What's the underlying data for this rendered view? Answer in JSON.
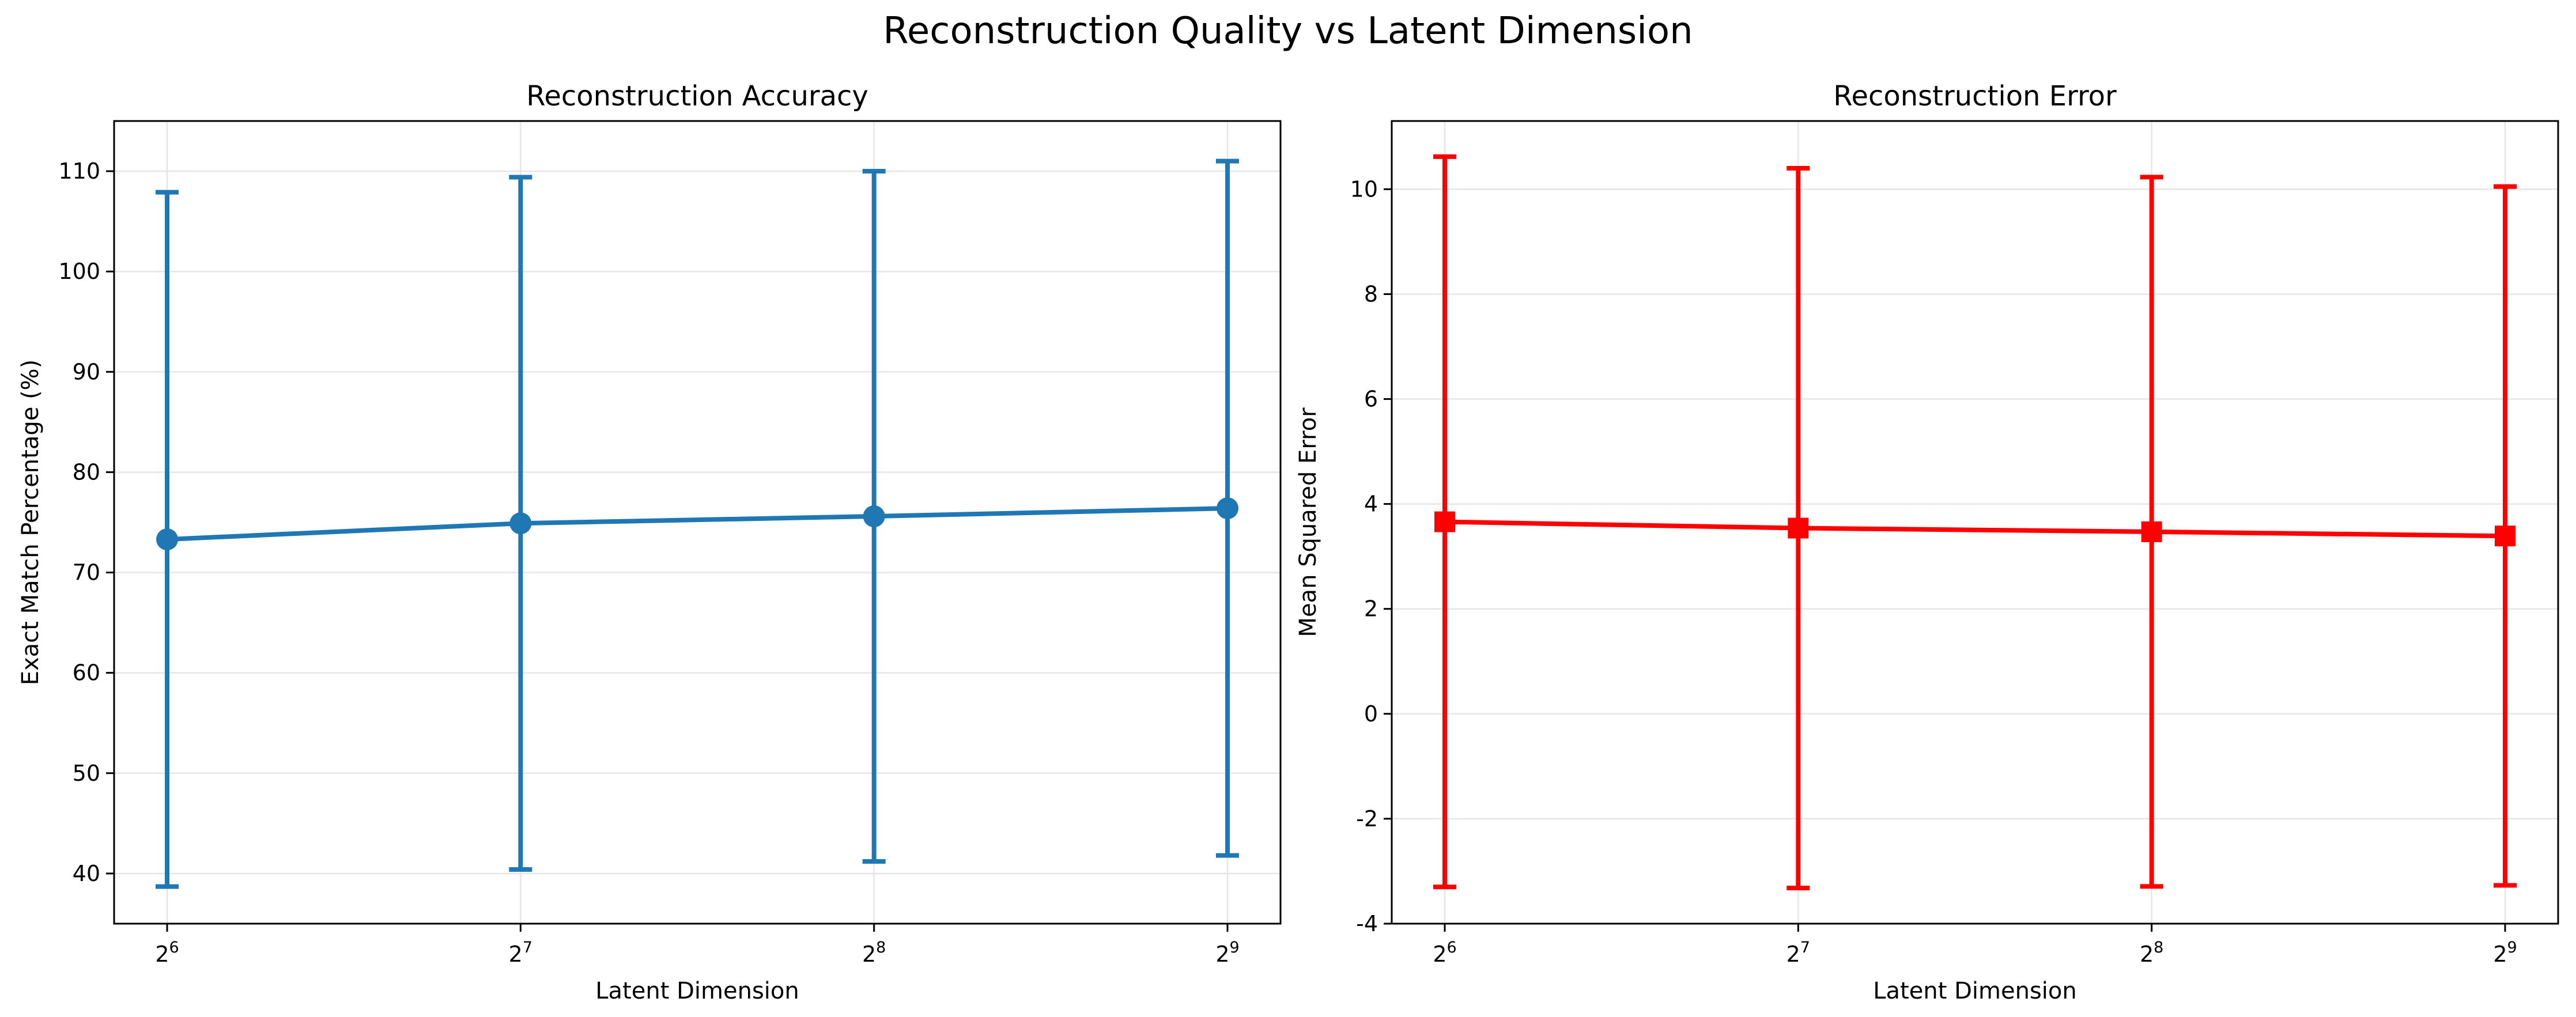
{
  "figure": {
    "title": "Reconstruction Quality vs Latent Dimension"
  },
  "chart_data": [
    {
      "type": "line",
      "title": "Reconstruction Accuracy",
      "xlabel": "Latent Dimension",
      "ylabel": "Exact Match Percentage (%)",
      "x_scale": "log2",
      "x": [
        64,
        128,
        256,
        512
      ],
      "xticks": [
        {
          "base": "2",
          "exp": "6"
        },
        {
          "base": "2",
          "exp": "7"
        },
        {
          "base": "2",
          "exp": "8"
        },
        {
          "base": "2",
          "exp": "9"
        }
      ],
      "ylim": [
        35,
        115
      ],
      "yticks": [
        40,
        50,
        60,
        70,
        80,
        90,
        100,
        110
      ],
      "grid": true,
      "color": "#1f77b4",
      "marker": "circle",
      "series": [
        {
          "values": [
            73.3,
            74.9,
            75.6,
            76.4
          ],
          "errors": [
            34.6,
            34.5,
            34.4,
            34.6
          ]
        }
      ]
    },
    {
      "type": "line",
      "title": "Reconstruction Error",
      "xlabel": "Latent Dimension",
      "ylabel": "Mean Squared Error",
      "x_scale": "log2",
      "x": [
        64,
        128,
        256,
        512
      ],
      "xticks": [
        {
          "base": "2",
          "exp": "6"
        },
        {
          "base": "2",
          "exp": "7"
        },
        {
          "base": "2",
          "exp": "8"
        },
        {
          "base": "2",
          "exp": "9"
        }
      ],
      "ylim": [
        -4,
        11.3
      ],
      "yticks": [
        -4,
        -2,
        0,
        2,
        4,
        6,
        8,
        10
      ],
      "grid": true,
      "color": "#ff0000",
      "marker": "square",
      "series": [
        {
          "values": [
            3.66,
            3.54,
            3.47,
            3.39
          ],
          "errors": [
            6.96,
            6.86,
            6.76,
            6.66
          ]
        }
      ]
    }
  ]
}
